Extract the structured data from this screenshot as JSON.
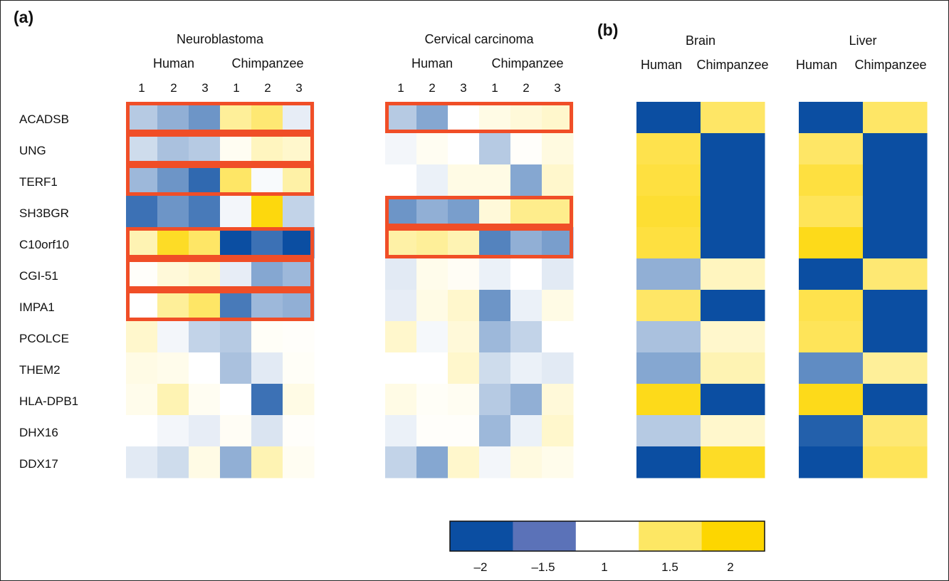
{
  "chart_data": {
    "type": "heatmap",
    "panels": [
      {
        "label": "(a)"
      },
      {
        "label": "(b)"
      }
    ],
    "genes": [
      "ACADSB",
      "UNG",
      "TERF1",
      "SH3BGR",
      "C10orf10",
      "CGI-51",
      "IMPA1",
      "PCOLCE",
      "THEM2",
      "HLA-DPB1",
      "DHX16",
      "DDX17"
    ],
    "heatmaps": [
      {
        "title": "Neuroblastoma",
        "groups": [
          "Human",
          "Chimpanzee"
        ],
        "replicates": [
          "1",
          "2",
          "3",
          "1",
          "2",
          "3"
        ],
        "values": [
          [
            -1.3,
            -1.45,
            -1.6,
            1.4,
            1.55,
            -1.1
          ],
          [
            -1.2,
            -1.35,
            -1.3,
            1.05,
            1.25,
            1.2
          ],
          [
            -1.4,
            -1.6,
            -1.85,
            1.6,
            -1.03,
            1.35
          ],
          [
            -1.8,
            -1.6,
            -1.75,
            -1.05,
            1.95,
            -1.25
          ],
          [
            1.3,
            1.85,
            1.6,
            -2.0,
            -1.8,
            -2.0
          ],
          [
            1.02,
            1.15,
            1.2,
            -1.1,
            -1.5,
            -1.4
          ],
          [
            1.0,
            1.4,
            1.6,
            -1.75,
            -1.4,
            -1.45
          ],
          [
            1.2,
            -1.05,
            -1.25,
            -1.3,
            1.03,
            1.02
          ],
          [
            1.1,
            1.08,
            1.0,
            -1.35,
            -1.12,
            1.03
          ],
          [
            1.08,
            1.3,
            1.05,
            1.0,
            -1.8,
            1.1
          ],
          [
            1.0,
            -1.05,
            -1.1,
            1.04,
            -1.15,
            1.02
          ],
          [
            -1.12,
            -1.2,
            1.1,
            -1.45,
            1.3,
            1.05
          ]
        ]
      },
      {
        "title": "Cervical carcinoma",
        "groups": [
          "Human",
          "Chimpanzee"
        ],
        "replicates": [
          "1",
          "2",
          "3",
          "1",
          "2",
          "3"
        ],
        "values": [
          [
            -1.3,
            -1.5,
            1.0,
            1.1,
            1.15,
            1.2
          ],
          [
            -1.05,
            1.05,
            1.0,
            -1.3,
            1.02,
            1.12
          ],
          [
            1.0,
            -1.08,
            1.1,
            1.1,
            -1.5,
            1.2
          ],
          [
            -1.6,
            -1.45,
            -1.55,
            1.15,
            1.45,
            1.45
          ],
          [
            1.35,
            1.4,
            1.3,
            -1.7,
            -1.45,
            -1.55
          ],
          [
            -1.12,
            1.08,
            1.04,
            -1.08,
            1.0,
            -1.12
          ],
          [
            -1.1,
            1.1,
            1.2,
            -1.6,
            -1.08,
            1.1
          ],
          [
            1.2,
            -1.04,
            1.15,
            -1.4,
            -1.25,
            1.0
          ],
          [
            1.0,
            1.0,
            1.2,
            -1.2,
            -1.08,
            -1.12
          ],
          [
            1.1,
            1.03,
            1.05,
            -1.3,
            -1.45,
            1.15
          ],
          [
            -1.08,
            1.02,
            1.02,
            -1.4,
            -1.08,
            1.2
          ],
          [
            -1.25,
            -1.5,
            1.2,
            -1.05,
            1.12,
            1.08
          ]
        ]
      },
      {
        "title": "Brain",
        "groups": [
          "Human",
          "Chimpanzee"
        ],
        "values": [
          [
            -2.0,
            1.6
          ],
          [
            1.7,
            -2.0
          ],
          [
            1.75,
            -2.0
          ],
          [
            1.8,
            -2.0
          ],
          [
            1.75,
            -2.0
          ],
          [
            -1.45,
            1.25
          ],
          [
            1.6,
            -2.0
          ],
          [
            -1.35,
            1.2
          ],
          [
            -1.5,
            1.3
          ],
          [
            1.9,
            -2.0
          ],
          [
            -1.3,
            1.2
          ],
          [
            -2.0,
            1.85
          ]
        ]
      },
      {
        "title": "Liver",
        "groups": [
          "Human",
          "Chimpanzee"
        ],
        "values": [
          [
            -2.0,
            1.6
          ],
          [
            1.6,
            -2.0
          ],
          [
            1.75,
            -2.0
          ],
          [
            1.65,
            -2.0
          ],
          [
            1.9,
            -2.0
          ],
          [
            -2.0,
            1.55
          ],
          [
            1.7,
            -2.0
          ],
          [
            1.65,
            -2.0
          ],
          [
            -1.65,
            1.4
          ],
          [
            1.9,
            -2.0
          ],
          [
            -1.9,
            1.55
          ],
          [
            -2.0,
            1.65
          ]
        ]
      }
    ],
    "highlights": [
      {
        "heatmap": 0,
        "rows": [
          "ACADSB"
        ]
      },
      {
        "heatmap": 0,
        "rows": [
          "UNG"
        ]
      },
      {
        "heatmap": 0,
        "rows": [
          "TERF1"
        ]
      },
      {
        "heatmap": 0,
        "rows": [
          "C10orf10"
        ]
      },
      {
        "heatmap": 0,
        "rows": [
          "CGI-51"
        ]
      },
      {
        "heatmap": 0,
        "rows": [
          "IMPA1"
        ]
      },
      {
        "heatmap": 1,
        "rows": [
          "ACADSB"
        ]
      },
      {
        "heatmap": 1,
        "rows": [
          "SH3BGR"
        ]
      },
      {
        "heatmap": 1,
        "rows": [
          "C10orf10"
        ]
      }
    ],
    "colorbar": {
      "ticks": [
        "–2",
        "–1.5",
        "1",
        "1.5",
        "2"
      ],
      "colors": [
        "#0b4ea2",
        "#5b72b8",
        "#ffffff",
        "#fde764",
        "#fdd600"
      ]
    }
  },
  "colors": {
    "highlight": "#f04e27",
    "strong_blue": "#0b4ea2",
    "strong_yellow": "#fdd600"
  }
}
